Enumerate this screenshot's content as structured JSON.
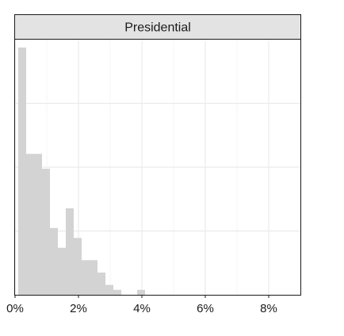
{
  "chart_data": {
    "type": "bar",
    "chart_kind": "histogram",
    "facet_label": "Presidential",
    "xlabel": "",
    "ylabel": "",
    "xlim": [
      0,
      9
    ],
    "x_tick_values": [
      0,
      2,
      4,
      6,
      8
    ],
    "x_tick_labels": [
      "0%",
      "2%",
      "4%",
      "6%",
      "8%"
    ],
    "y_axis_labels_shown": false,
    "grid": true,
    "bar_color": "#d3d3d3",
    "bins": [
      {
        "x0": 0.1,
        "x1": 0.35,
        "count": 1.0
      },
      {
        "x0": 0.35,
        "x1": 0.6,
        "count": 0.57
      },
      {
        "x0": 0.6,
        "x1": 0.85,
        "count": 0.57
      },
      {
        "x0": 0.85,
        "x1": 1.1,
        "count": 0.51
      },
      {
        "x0": 1.1,
        "x1": 1.35,
        "count": 0.27
      },
      {
        "x0": 1.35,
        "x1": 1.6,
        "count": 0.19
      },
      {
        "x0": 1.6,
        "x1": 1.85,
        "count": 0.35
      },
      {
        "x0": 1.85,
        "x1": 2.1,
        "count": 0.23
      },
      {
        "x0": 2.1,
        "x1": 2.35,
        "count": 0.14
      },
      {
        "x0": 2.35,
        "x1": 2.6,
        "count": 0.14
      },
      {
        "x0": 2.6,
        "x1": 2.85,
        "count": 0.09
      },
      {
        "x0": 2.85,
        "x1": 3.1,
        "count": 0.04
      },
      {
        "x0": 3.1,
        "x1": 3.35,
        "count": 0.02
      },
      {
        "x0": 3.35,
        "x1": 3.6,
        "count": 0
      },
      {
        "x0": 3.6,
        "x1": 3.85,
        "count": 0
      },
      {
        "x0": 3.85,
        "x1": 4.1,
        "count": 0.02
      }
    ]
  }
}
